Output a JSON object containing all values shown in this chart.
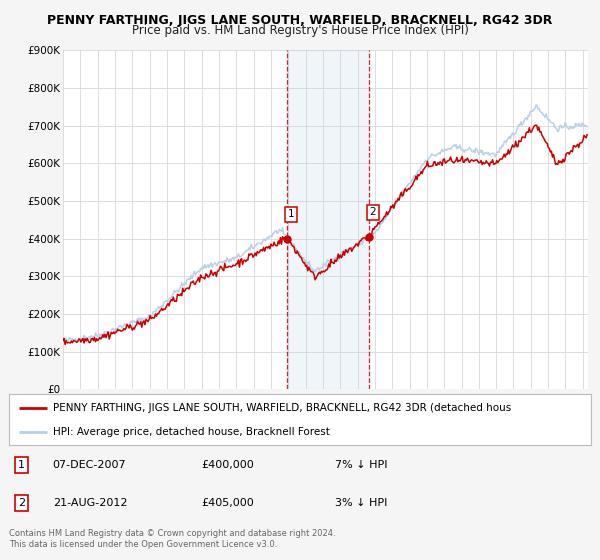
{
  "title": "PENNY FARTHING, JIGS LANE SOUTH, WARFIELD, BRACKNELL, RG42 3DR",
  "subtitle": "Price paid vs. HM Land Registry's House Price Index (HPI)",
  "ylim": [
    0,
    900000
  ],
  "yticks": [
    0,
    100000,
    200000,
    300000,
    400000,
    500000,
    600000,
    700000,
    800000,
    900000
  ],
  "ytick_labels": [
    "£0",
    "£100K",
    "£200K",
    "£300K",
    "£400K",
    "£500K",
    "£600K",
    "£700K",
    "£800K",
    "£900K"
  ],
  "xlim_start": 1995.0,
  "xlim_end": 2025.3,
  "hpi_color": "#b8d0e8",
  "price_color": "#cc0000",
  "background_color": "#f5f5f5",
  "plot_bg_color": "#ffffff",
  "grid_color": "#d8d8d8",
  "sale1_x": 2007.93,
  "sale1_y": 400000,
  "sale1_label": "1",
  "sale1_date": "07-DEC-2007",
  "sale1_price": "£400,000",
  "sale1_hpi": "7% ↓ HPI",
  "sale2_x": 2012.64,
  "sale2_y": 405000,
  "sale2_label": "2",
  "sale2_date": "21-AUG-2012",
  "sale2_price": "£405,000",
  "sale2_hpi": "3% ↓ HPI",
  "shade_x1": 2007.93,
  "shade_x2": 2012.64,
  "legend_line1": "PENNY FARTHING, JIGS LANE SOUTH, WARFIELD, BRACKNELL, RG42 3DR (detached hous",
  "legend_line2": "HPI: Average price, detached house, Bracknell Forest",
  "footnote": "Contains HM Land Registry data © Crown copyright and database right 2024.\nThis data is licensed under the Open Government Licence v3.0.",
  "title_fontsize": 9,
  "subtitle_fontsize": 8.5,
  "tick_fontsize": 7.5,
  "legend_fontsize": 7.5,
  "footnote_fontsize": 6.0
}
